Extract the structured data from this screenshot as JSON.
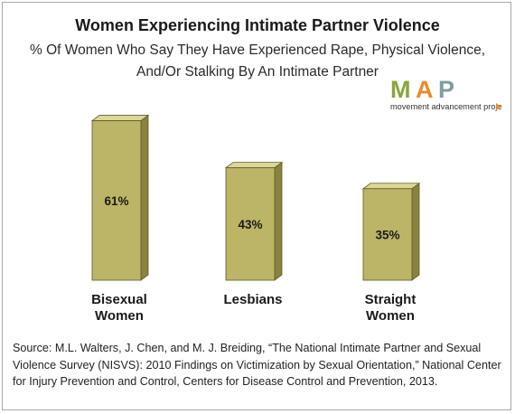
{
  "header": {
    "title": "Women Experiencing Intimate Partner Violence",
    "subtitle": "% Of Women Who Say They Have Experienced Rape, Physical Violence, And/Or Stalking By An Intimate Partner"
  },
  "logo": {
    "letters": [
      "M",
      "A",
      "P"
    ],
    "letter_colors": [
      "#8aa63c",
      "#e88c2e",
      "#7f9da3"
    ],
    "tagline": "movement advancement project",
    "accent": "#e88c2e"
  },
  "chart_data": {
    "type": "bar",
    "categories": [
      [
        "Bisexual",
        "Women"
      ],
      [
        "Lesbians"
      ],
      [
        "Straight",
        "Women"
      ]
    ],
    "values": [
      61,
      43,
      35
    ],
    "value_labels": [
      "61%",
      "43%",
      "35%"
    ],
    "ylim": [
      0,
      65
    ],
    "bar_colors": {
      "front": "#bcb466",
      "top": "#dcd797",
      "side": "#8a8340",
      "edge": "#5e5a26"
    }
  },
  "footer": {
    "source": "Source: M.L. Walters, J. Chen, and M. J. Breiding, “The National Intimate Partner and Sexual Violence Survey (NISVS): 2010 Findings on Victimization by Sexual Orientation,” National Center for Injury Prevention and Control, Centers for Disease Control and Prevention, 2013."
  }
}
